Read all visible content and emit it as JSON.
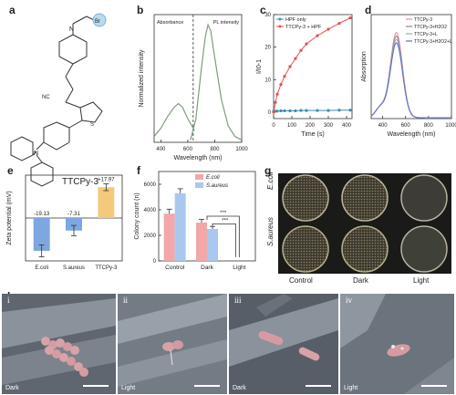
{
  "panels": {
    "a": "a",
    "b": "b",
    "c": "c",
    "d": "d",
    "e": "e",
    "f": "f",
    "g": "g",
    "h": "h"
  },
  "molecule": {
    "name": "TTCPy-3",
    "atoms": {
      "N_plus": "N",
      "Br": "Br",
      "CN": "NC",
      "N_amine": "N",
      "S": "S"
    }
  },
  "chart_data": [
    {
      "id": "b",
      "type": "line",
      "xlabel": "Wavelength (nm)",
      "ylabel": "Normalized intensity",
      "xticks": [
        "400",
        "600",
        "800",
        "1000"
      ],
      "xlim": [
        350,
        1000
      ],
      "legend": [
        "Absorbance",
        "PL intensity"
      ],
      "series": [
        {
          "name": "Absorbance",
          "color": "#7d9e7a",
          "x": [
            350,
            400,
            450,
            500,
            530,
            560,
            600,
            650
          ],
          "y": [
            0.05,
            0.12,
            0.22,
            0.3,
            0.33,
            0.3,
            0.2,
            0.1
          ]
        },
        {
          "name": "PL intensity",
          "color": "#7d9e7a",
          "x": [
            620,
            660,
            700,
            730,
            750,
            770,
            800,
            850,
            900,
            950,
            1000
          ],
          "y": [
            0.02,
            0.2,
            0.62,
            0.9,
            1.0,
            0.95,
            0.72,
            0.36,
            0.14,
            0.05,
            0.02
          ]
        }
      ],
      "vline": 640
    },
    {
      "id": "c",
      "type": "line",
      "xlabel": "Time (s)",
      "ylabel": "I/I0-1",
      "xticks": [
        "0",
        "100",
        "200",
        "300",
        "400"
      ],
      "yticks": [
        "0",
        "10",
        "20",
        "30"
      ],
      "xlim": [
        0,
        430
      ],
      "ylim": [
        -2,
        30
      ],
      "legend": [
        "HPF only",
        "TTCPy-3 + HPF"
      ],
      "series": [
        {
          "name": "HPF only",
          "color": "#3a8fb5",
          "x": [
            0,
            10,
            20,
            40,
            60,
            90,
            120,
            150,
            180,
            240,
            300,
            360,
            420
          ],
          "y": [
            0.3,
            0.3,
            0.3,
            0.4,
            0.4,
            0.4,
            0.4,
            0.5,
            0.5,
            0.5,
            0.5,
            0.6,
            0.6
          ]
        },
        {
          "name": "TTCPy-3 + HPF",
          "color": "#e0534f",
          "x": [
            0,
            10,
            20,
            40,
            60,
            90,
            120,
            150,
            180,
            240,
            300,
            360,
            420
          ],
          "y": [
            0,
            3.0,
            5.5,
            8.5,
            11.0,
            14.0,
            16.5,
            19.0,
            21.0,
            23.5,
            25.5,
            27.3,
            29.0
          ]
        }
      ]
    },
    {
      "id": "d",
      "type": "line",
      "xlabel": "Wavelength (nm)",
      "ylabel": "Absorption",
      "xticks": [
        "400",
        "600",
        "800",
        "1000"
      ],
      "xlim": [
        300,
        1000
      ],
      "legend": [
        "TTCPy-3",
        "TTCPy-3+H2O2",
        "TTCPy-3+L",
        "TTCPy-3+H2O2+L"
      ],
      "series": [
        {
          "name": "TTCPy-3",
          "color": "#f08f8f",
          "peak": 1.0
        },
        {
          "name": "TTCPy-3+H2O2",
          "color": "#8a8a8a",
          "peak": 0.96
        },
        {
          "name": "TTCPy-3+L",
          "color": "#9da3d6",
          "peak": 0.92
        },
        {
          "name": "TTCPy-3+H2O2+L",
          "color": "#5b6fbf",
          "peak": 0.88
        }
      ]
    },
    {
      "id": "e",
      "type": "bar",
      "ylabel": "Zeta potential (mV)",
      "categories": [
        "E.coli",
        "S.aureus",
        "TTCPy-3"
      ],
      "values": [
        -19.13,
        -7.31,
        17.97
      ],
      "value_labels": [
        "-19.13",
        "-7.31",
        "+17.97"
      ],
      "errors": [
        3.5,
        3.0,
        2.0
      ],
      "colors": [
        "#7da7e0",
        "#7da7e0",
        "#f3c97c"
      ],
      "ylim": [
        -25,
        25
      ]
    },
    {
      "id": "f",
      "type": "bar",
      "ylabel": "Colony count (n)",
      "categories": [
        "Control",
        "Dark",
        "Light"
      ],
      "yticks": [
        "0",
        "2000",
        "4000",
        "6000"
      ],
      "ylim": [
        0,
        7000
      ],
      "legend": [
        "E.coli",
        "S.aureus"
      ],
      "series": [
        {
          "name": "E.coli",
          "color": "#f4a7a7",
          "values": [
            3700,
            3000,
            0
          ],
          "errors": [
            350,
            250,
            0
          ]
        },
        {
          "name": "S.aureus",
          "color": "#a9c8f0",
          "values": [
            5300,
            2500,
            0
          ],
          "errors": [
            350,
            200,
            0
          ]
        }
      ],
      "significance": [
        "***",
        "***"
      ]
    }
  ],
  "panel_g": {
    "columns": [
      "Control",
      "Dark",
      "Light"
    ],
    "rows": [
      "E.coli",
      "S.aureus"
    ]
  },
  "panel_h": [
    {
      "index": "i",
      "condition": "Dark"
    },
    {
      "index": "ii",
      "condition": "Light"
    },
    {
      "index": "iii",
      "condition": "Dark"
    },
    {
      "index": "iv",
      "condition": "Light"
    }
  ]
}
